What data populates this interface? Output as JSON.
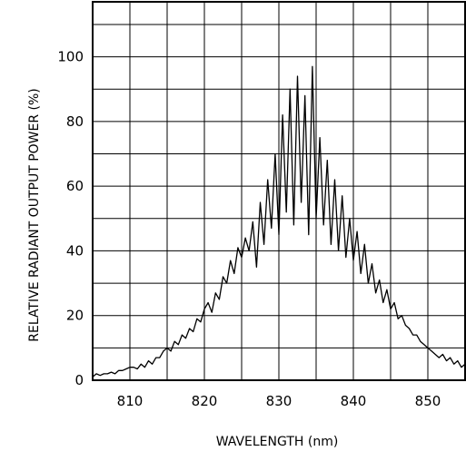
{
  "chart_data": {
    "type": "line",
    "title": "",
    "xlabel": "WAVELENGTH (nm)",
    "ylabel": "RELATIVE RADIANT OUTPUT POWER (%)",
    "xlim": [
      805,
      855
    ],
    "ylim": [
      0,
      117
    ],
    "x_ticks": [
      810,
      820,
      830,
      840,
      850
    ],
    "y_ticks": [
      0,
      20,
      40,
      60,
      80,
      100
    ],
    "x_grid": [
      805,
      810,
      815,
      820,
      825,
      830,
      835,
      840,
      845,
      850,
      855
    ],
    "y_grid": [
      10,
      20,
      30,
      40,
      50,
      60,
      70,
      80,
      90,
      100,
      110
    ],
    "grid": true,
    "line_color": "#000000",
    "series": [
      {
        "x": [
          805.0,
          805.5,
          806.0,
          806.5,
          807.0,
          807.5,
          808.0,
          808.5,
          809.0,
          809.5,
          810.0,
          810.5,
          811.0,
          811.5,
          812.0,
          812.5,
          813.0,
          813.5,
          814.0,
          814.5,
          815.0,
          815.5,
          816.0,
          816.5,
          817.0,
          817.5,
          818.0,
          818.5,
          819.0,
          819.5,
          820.0,
          820.5,
          821.0,
          821.5,
          822.0,
          822.5,
          823.0,
          823.5,
          824.0,
          824.5,
          825.0,
          825.5,
          826.0,
          826.5,
          827.0,
          827.5,
          828.0,
          828.5,
          829.0,
          829.5,
          830.0,
          830.5,
          831.0,
          831.5,
          832.0,
          832.5,
          833.0,
          833.5,
          834.0,
          834.5,
          835.0,
          835.5,
          836.0,
          836.5,
          837.0,
          837.5,
          838.0,
          838.5,
          839.0,
          839.5,
          840.0,
          840.5,
          841.0,
          841.5,
          842.0,
          842.5,
          843.0,
          843.5,
          844.0,
          844.5,
          845.0,
          845.5,
          846.0,
          846.5,
          847.0,
          847.5,
          848.0,
          848.5,
          849.0,
          849.5,
          850.0,
          850.5,
          851.0,
          851.5,
          852.0,
          852.5,
          853.0,
          853.5,
          854.0,
          854.5,
          855.0
        ],
        "y": [
          1,
          2,
          1.5,
          2,
          2,
          2.5,
          2,
          3,
          3,
          3.5,
          4,
          4,
          3.5,
          5,
          4,
          6,
          5,
          7,
          7,
          9,
          10,
          9,
          12,
          11,
          14,
          13,
          16,
          15,
          19,
          18,
          22,
          24,
          21,
          27,
          25,
          32,
          30,
          37,
          33,
          41,
          38,
          44,
          40,
          49,
          35,
          55,
          42,
          62,
          47,
          70,
          45,
          82,
          52,
          90,
          48,
          94,
          55,
          88,
          45,
          97,
          50,
          75,
          48,
          68,
          42,
          62,
          40,
          57,
          38,
          50,
          37,
          46,
          33,
          42,
          30,
          36,
          27,
          31,
          24,
          28,
          22,
          24,
          19,
          20,
          17,
          16,
          14,
          14,
          12,
          11,
          10,
          9,
          8,
          7,
          8,
          6,
          7,
          5,
          6,
          4,
          5
        ]
      }
    ]
  }
}
